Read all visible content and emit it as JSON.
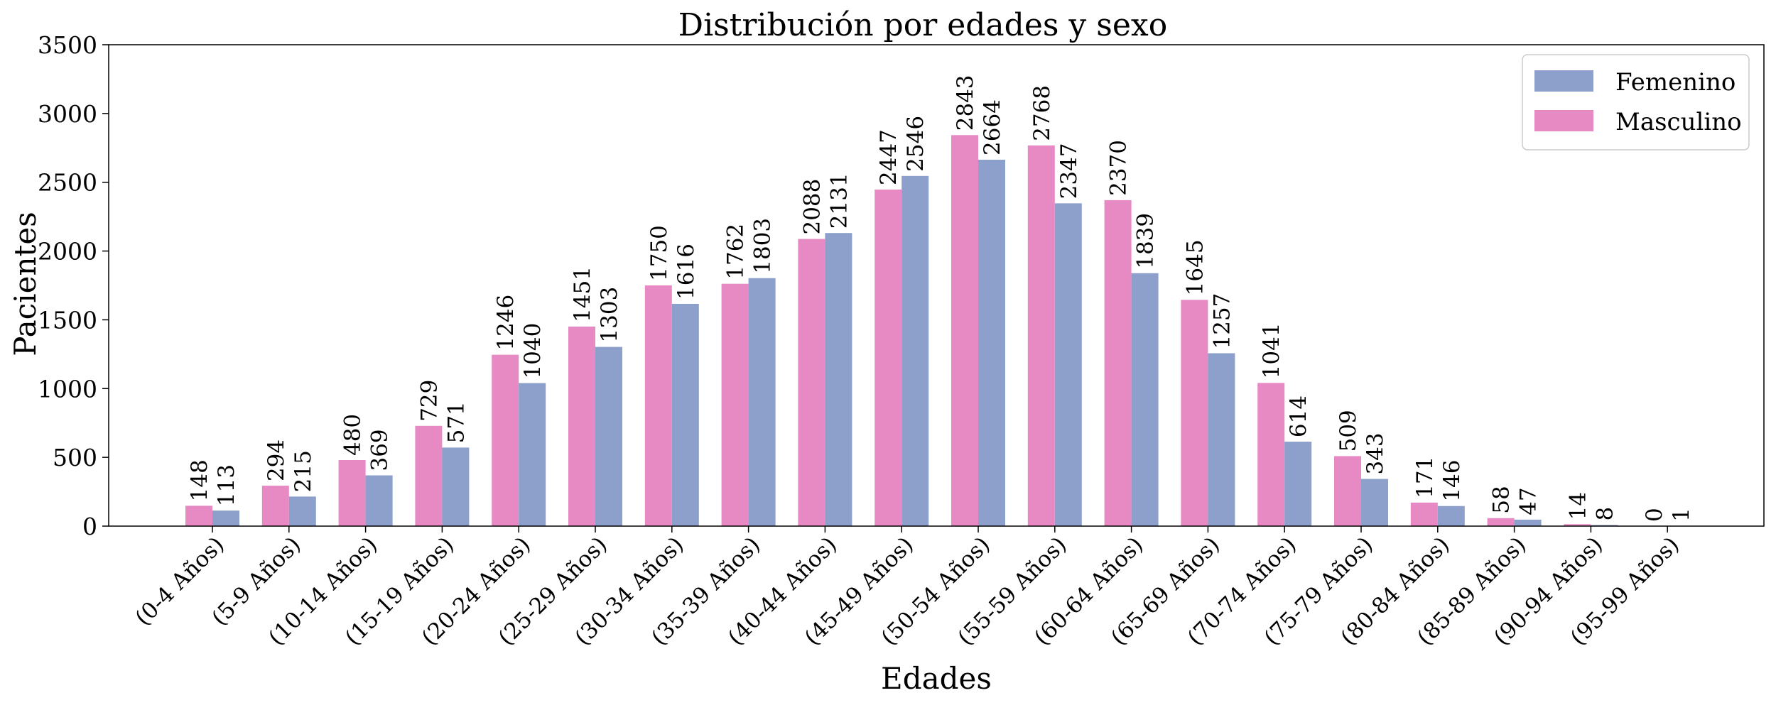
{
  "chart_data": {
    "type": "bar",
    "title": "Distribución por edades y sexo",
    "xlabel": "Edades",
    "ylabel": "Pacientes",
    "ylim": [
      0,
      3500
    ],
    "yticks": [
      0,
      500,
      1000,
      1500,
      2000,
      2500,
      3000,
      3500
    ],
    "grid": false,
    "legend_position": "top-right",
    "categories": [
      "(0-4 Años)",
      "(5-9 Años)",
      "(10-14 Años)",
      "(15-19 Años)",
      "(20-24 Años)",
      "(25-29 Años)",
      "(30-34 Años)",
      "(35-39 Años)",
      "(40-44 Años)",
      "(45-49 Años)",
      "(50-54 Años)",
      "(55-59 Años)",
      "(60-64 Años)",
      "(65-69 Años)",
      "(70-74 Años)",
      "(75-79 Años)",
      "(80-84 Años)",
      "(85-89 Años)",
      "(90-94 Años)",
      "(95-99 Años)"
    ],
    "series": [
      {
        "name": "Masculino",
        "color": "#e78ac3",
        "values": [
          148,
          294,
          480,
          729,
          1246,
          1451,
          1750,
          1762,
          2088,
          2447,
          2843,
          2768,
          2370,
          1645,
          1041,
          509,
          171,
          58,
          14,
          0
        ]
      },
      {
        "name": "Femenino",
        "color": "#8da0cb",
        "values": [
          113,
          215,
          369,
          571,
          1040,
          1303,
          1616,
          1803,
          2131,
          2546,
          2664,
          2347,
          1839,
          1257,
          614,
          343,
          146,
          47,
          8,
          1
        ]
      }
    ],
    "legend_order": [
      "Femenino",
      "Masculino"
    ]
  }
}
